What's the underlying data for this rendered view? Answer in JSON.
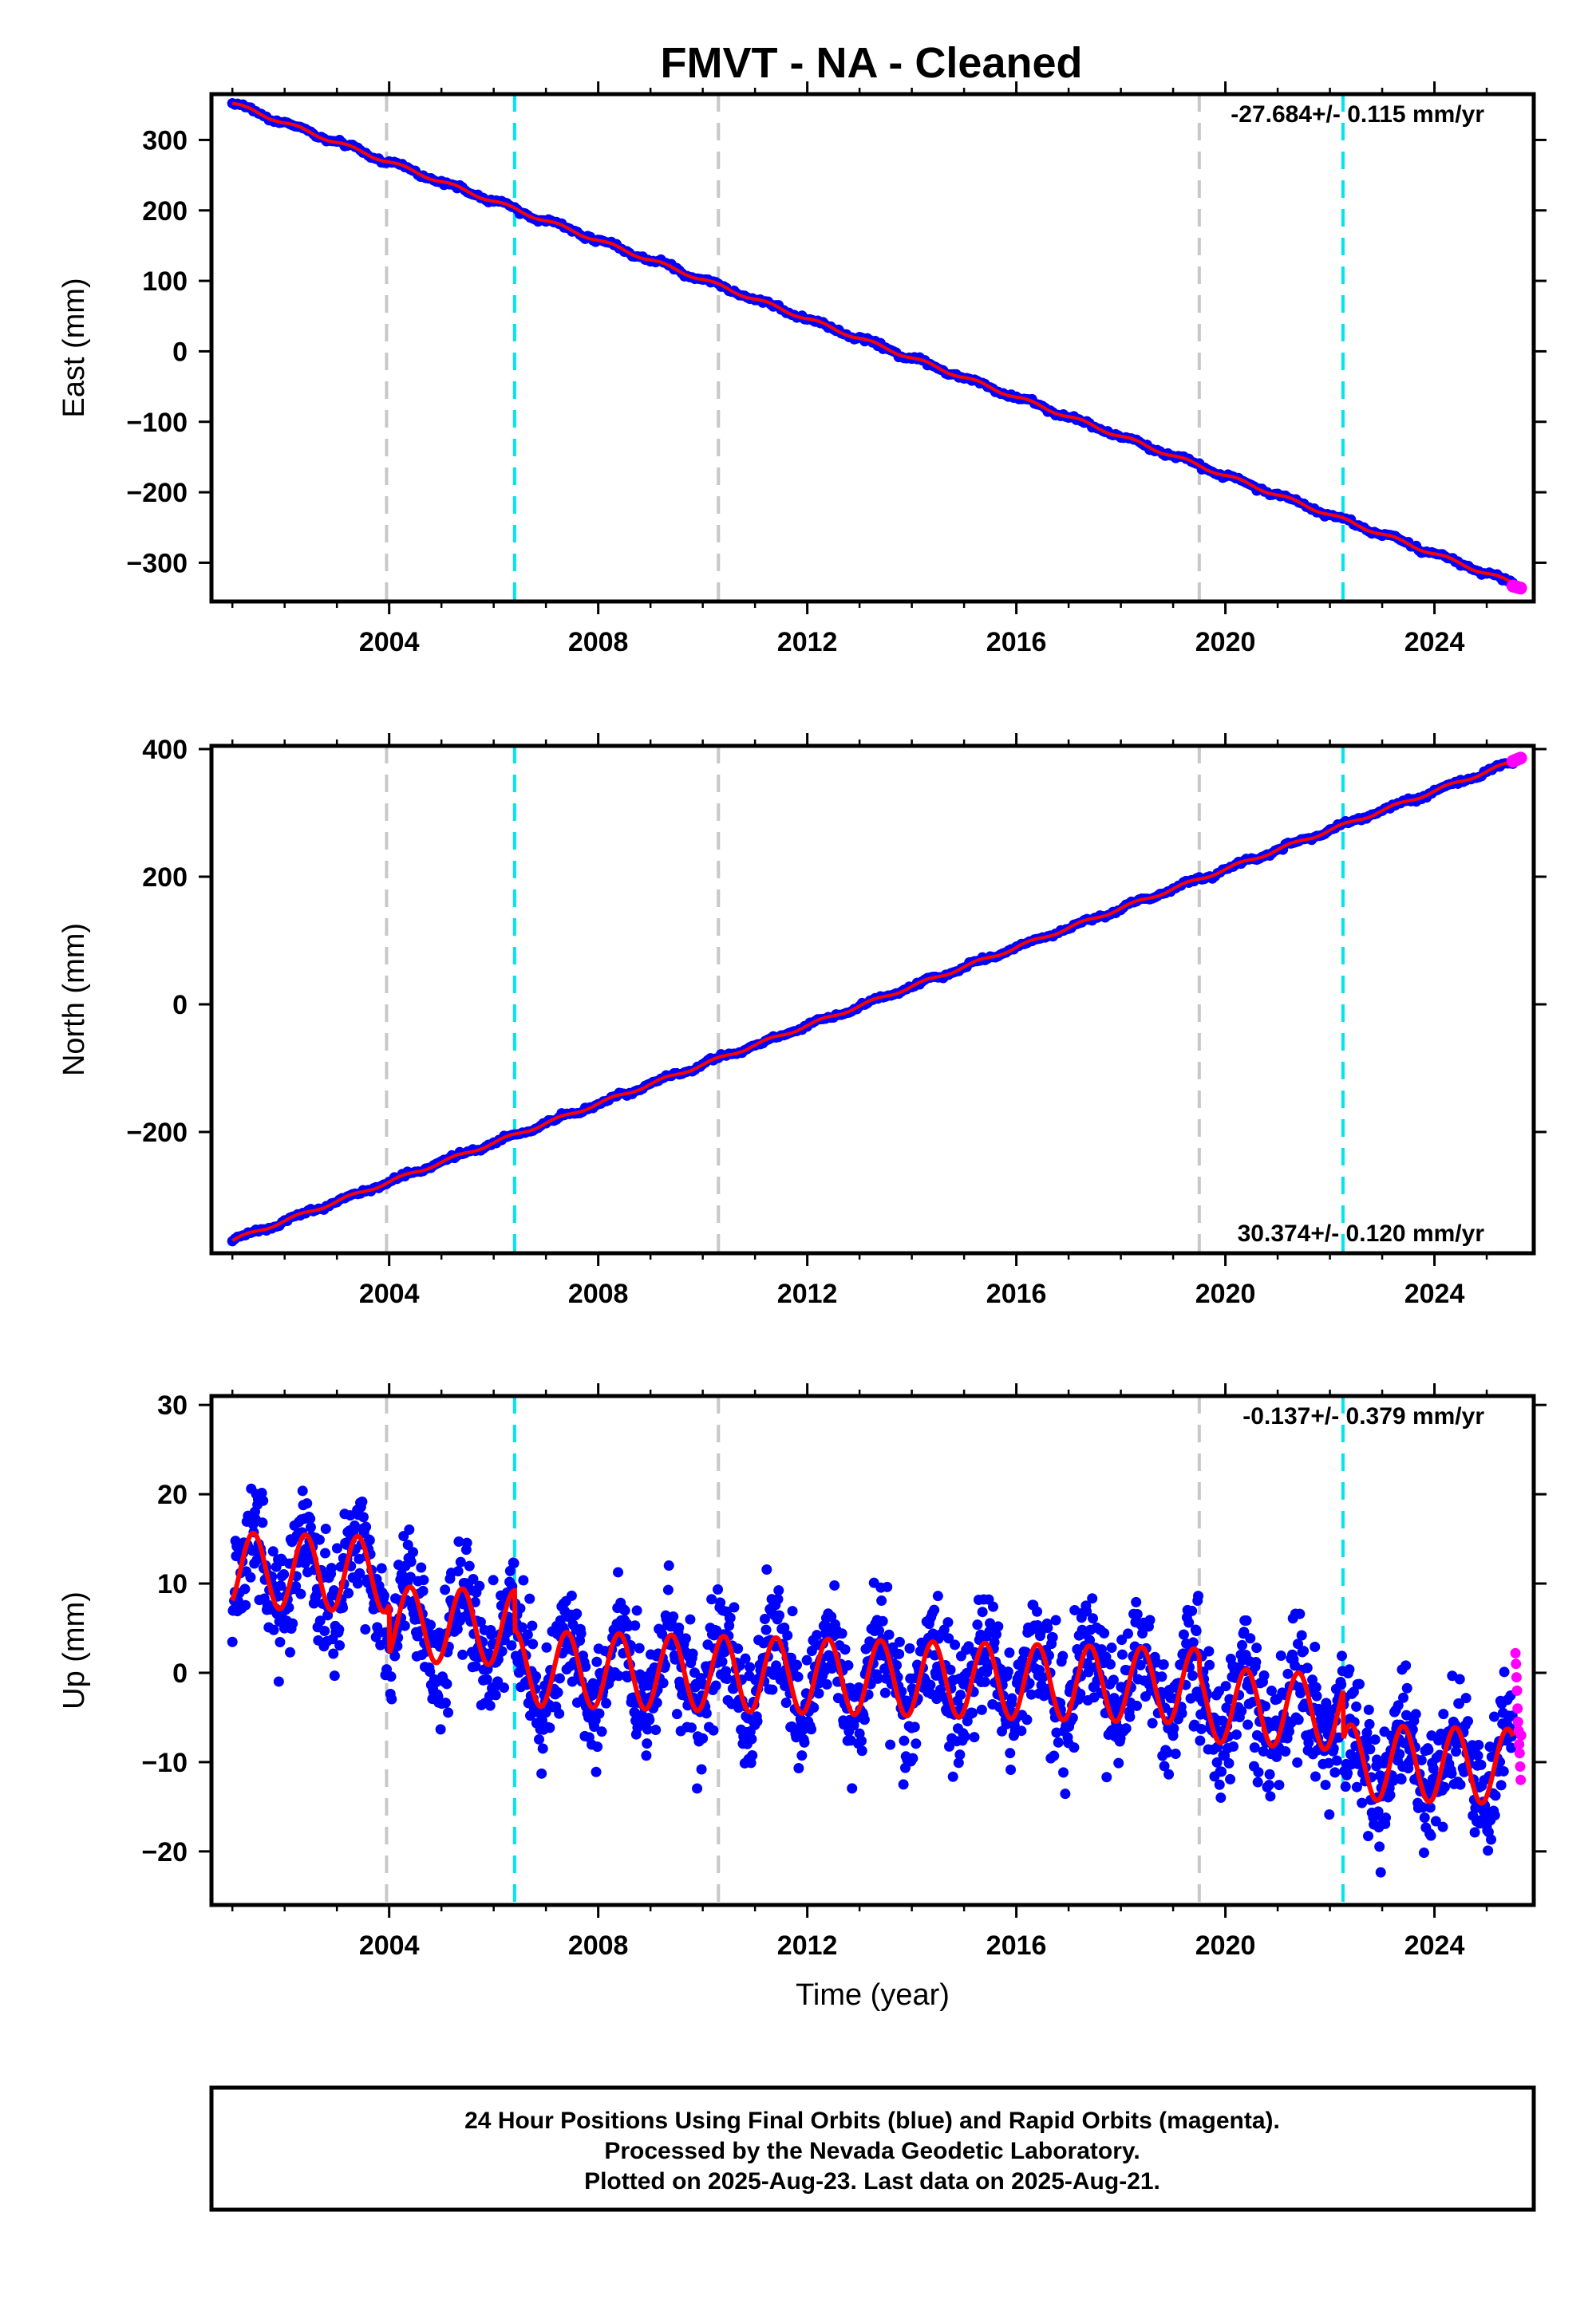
{
  "title": "FMVT  - NA - Cleaned",
  "footer": {
    "line1": "24 Hour Positions Using Final Orbits (blue) and Rapid Orbits (magenta).",
    "line2": "Processed by the Nevada Geodetic Laboratory.",
    "line3": "Plotted on 2025-Aug-23. Last data on 2025-Aug-21."
  },
  "colors": {
    "final_orbits": "#0000ff",
    "rapid_orbits": "#ff00ff",
    "model_fit": "#ff0000",
    "gray_lines": "#c8c8c8",
    "cyan_lines": "#00e5ee"
  },
  "chart_data": [
    {
      "type": "scatter",
      "component": "East",
      "ylabel": "East (mm)",
      "xlabel": "",
      "xlim": [
        2000.6,
        2025.9
      ],
      "ylim": [
        -355,
        365
      ],
      "yticks": [
        300,
        200,
        100,
        0,
        -100,
        -200,
        -300
      ],
      "xticks": [
        2004,
        2008,
        2012,
        2016,
        2020,
        2024
      ],
      "rate_text": "-27.684+/- 0.115 mm/yr",
      "rate_position": "top-right",
      "rate_mm_per_yr": -27.684,
      "series": [
        {
          "name": "Final Orbits",
          "x_start": 2001.0,
          "x_end": 2025.5,
          "y_start": 352,
          "y_end": -329
        },
        {
          "name": "Rapid Orbits",
          "x_start": 2025.5,
          "x_end": 2025.65,
          "y_start": -333,
          "y_end": -336
        }
      ],
      "gray_lines_x": [
        2003.95,
        2010.3,
        2019.5
      ],
      "cyan_lines_x": [
        2006.4,
        2022.25
      ]
    },
    {
      "type": "scatter",
      "component": "North",
      "ylabel": "North (mm)",
      "xlabel": "",
      "xlim": [
        2000.6,
        2025.9
      ],
      "ylim": [
        -390,
        405
      ],
      "yticks": [
        400,
        200,
        0,
        -200
      ],
      "xticks": [
        2004,
        2008,
        2012,
        2016,
        2020,
        2024
      ],
      "rate_text": "30.374+/- 0.120 mm/yr",
      "rate_position": "bottom-right",
      "rate_mm_per_yr": 30.374,
      "series": [
        {
          "name": "Final Orbits",
          "x_start": 2001.0,
          "x_end": 2025.5,
          "y_start": -370,
          "y_end": 380
        },
        {
          "name": "Rapid Orbits",
          "x_start": 2025.5,
          "x_end": 2025.65,
          "y_start": 381,
          "y_end": 386
        }
      ],
      "gray_lines_x": [
        2003.95,
        2010.3,
        2019.5
      ],
      "cyan_lines_x": [
        2006.4,
        2022.25
      ]
    },
    {
      "type": "scatter",
      "component": "Up",
      "ylabel": "Up (mm)",
      "xlabel": "Time (year)",
      "xlim": [
        2000.6,
        2025.9
      ],
      "ylim": [
        -26,
        31
      ],
      "yticks": [
        30,
        20,
        10,
        0,
        -10,
        -20
      ],
      "xticks": [
        2004,
        2008,
        2012,
        2016,
        2020,
        2024
      ],
      "rate_text": "-0.137+/- 0.379 mm/yr",
      "rate_position": "top-right",
      "rate_mm_per_yr": -0.137,
      "scatter_amplitude_mm": 4.5,
      "seasonal_amplitude_mm": 4.2,
      "model_offsets": [
        {
          "x": 2001.0,
          "mean": 11.5
        },
        {
          "x": 2004.0,
          "mean": 11.0
        },
        {
          "x": 2004.01,
          "mean": 5.5
        },
        {
          "x": 2006.4,
          "mean": 5.0
        },
        {
          "x": 2006.41,
          "mean": 0.5
        },
        {
          "x": 2019.5,
          "mean": -1.5
        },
        {
          "x": 2019.51,
          "mean": -3.5
        },
        {
          "x": 2022.25,
          "mean": -4.5
        },
        {
          "x": 2022.26,
          "mean": -10.0
        },
        {
          "x": 2025.5,
          "mean": -10.5
        }
      ],
      "rapid_points": [
        {
          "x": 2025.55,
          "y": 2.2
        },
        {
          "x": 2025.56,
          "y": 1.0
        },
        {
          "x": 2025.57,
          "y": -0.5
        },
        {
          "x": 2025.58,
          "y": -2.0
        },
        {
          "x": 2025.59,
          "y": -4.0
        },
        {
          "x": 2025.6,
          "y": -5.5
        },
        {
          "x": 2025.61,
          "y": -6.5
        },
        {
          "x": 2025.62,
          "y": -8.0
        },
        {
          "x": 2025.63,
          "y": -9.0
        },
        {
          "x": 2025.64,
          "y": -10.5
        },
        {
          "x": 2025.65,
          "y": -12.0
        },
        {
          "x": 2025.66,
          "y": -7.0
        }
      ],
      "gray_lines_x": [
        2003.95,
        2010.3,
        2019.5
      ],
      "cyan_lines_x": [
        2006.4,
        2022.25
      ]
    }
  ]
}
